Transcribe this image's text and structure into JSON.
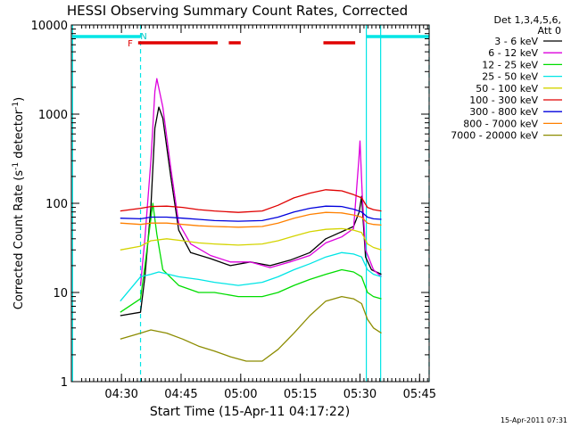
{
  "chart_data": {
    "type": "line",
    "title": "HESSI Observing Summary Count Rates, Corrected",
    "xlabel": "Start Time (15-Apr-11 04:17:22)",
    "ylabel": "Corrected Count Rate (s",
    "ylabel_sup": "-1",
    "ylabel_mid": " detector",
    "ylabel_sup2": "-1",
    "ylabel_end": ")",
    "y_scale": "log",
    "ylim": [
      1,
      10000
    ],
    "xlim_minutes": [
      0,
      90
    ],
    "x_start": "04:17:22",
    "x_ticks": [
      {
        "label": "04:30",
        "min": 12.6
      },
      {
        "label": "04:45",
        "min": 27.6
      },
      {
        "label": "05:00",
        "min": 42.6
      },
      {
        "label": "05:15",
        "min": 57.6
      },
      {
        "label": "05:30",
        "min": 72.6
      },
      {
        "label": "05:45",
        "min": 87.6
      }
    ],
    "y_ticks": [
      {
        "label": "1",
        "value": 1
      },
      {
        "label": "10",
        "value": 10
      },
      {
        "label": "100",
        "value": 100
      },
      {
        "label": "1000",
        "value": 1000
      },
      {
        "label": "10000",
        "value": 10000
      }
    ],
    "legend_header": [
      "Det 1,3,4,5,6,",
      "Att 0"
    ],
    "legend_placement": "right",
    "footer_date": "15-Apr-2011 07:31",
    "flag_labels": {
      "F": "F",
      "N": "N"
    },
    "flags": {
      "night_vertical_minutes": [
        0.3,
        17.4,
        74.2,
        77.8,
        90
      ],
      "night_bar_minutes": [
        [
          0.3,
          17.4
        ],
        [
          74.2,
          90
        ]
      ],
      "flare_bar_minutes": [
        [
          16.8,
          36.8
        ],
        [
          39.6,
          42.6
        ],
        [
          63.4,
          71.4
        ]
      ],
      "night_color": "#00e5e5",
      "flare_color": "#e00000"
    },
    "series": [
      {
        "name": "3 - 6 keV",
        "color": "#000000",
        "points": [
          [
            12.3,
            5.5
          ],
          [
            17.4,
            6
          ],
          [
            18.5,
            15
          ],
          [
            20,
            90
          ],
          [
            21,
            700
          ],
          [
            22,
            1200
          ],
          [
            23,
            900
          ],
          [
            25,
            200
          ],
          [
            27,
            50
          ],
          [
            30,
            28
          ],
          [
            35,
            24
          ],
          [
            40,
            20
          ],
          [
            45,
            22
          ],
          [
            50,
            20
          ],
          [
            55,
            23
          ],
          [
            60,
            28
          ],
          [
            64,
            40
          ],
          [
            68,
            48
          ],
          [
            71,
            55
          ],
          [
            72.4,
            80
          ],
          [
            73,
            120
          ],
          [
            74,
            25
          ],
          [
            75.5,
            18
          ],
          [
            78,
            16
          ]
        ]
      },
      {
        "name": "6 - 12 keV",
        "color": "#dd00dd",
        "points": [
          [
            17.4,
            12
          ],
          [
            18.5,
            40
          ],
          [
            20,
            300
          ],
          [
            21,
            1800
          ],
          [
            21.5,
            2500
          ],
          [
            23,
            1200
          ],
          [
            25,
            250
          ],
          [
            27,
            60
          ],
          [
            30,
            35
          ],
          [
            35,
            26
          ],
          [
            40,
            22
          ],
          [
            45,
            22
          ],
          [
            50,
            19
          ],
          [
            55,
            22
          ],
          [
            60,
            26
          ],
          [
            64,
            36
          ],
          [
            68,
            42
          ],
          [
            71,
            52
          ],
          [
            72.3,
            300
          ],
          [
            72.6,
            500
          ],
          [
            73.2,
            120
          ],
          [
            74,
            30
          ],
          [
            76,
            18
          ],
          [
            78,
            15
          ]
        ]
      },
      {
        "name": "12 - 25 keV",
        "color": "#00dd00",
        "points": [
          [
            12.3,
            6
          ],
          [
            17.4,
            8.5
          ],
          [
            18.5,
            20
          ],
          [
            20.5,
            100
          ],
          [
            21.5,
            45
          ],
          [
            23,
            18
          ],
          [
            27,
            12
          ],
          [
            32,
            10
          ],
          [
            36,
            10
          ],
          [
            42,
            9
          ],
          [
            48,
            9
          ],
          [
            52,
            10
          ],
          [
            56,
            12
          ],
          [
            60,
            14
          ],
          [
            64,
            16
          ],
          [
            68,
            18
          ],
          [
            71,
            17
          ],
          [
            73,
            15
          ],
          [
            74.5,
            10
          ],
          [
            76,
            9
          ],
          [
            78,
            8.5
          ]
        ]
      },
      {
        "name": "25 - 50 keV",
        "color": "#00e5e5",
        "points": [
          [
            12.3,
            8
          ],
          [
            17.4,
            15
          ],
          [
            20,
            16
          ],
          [
            22,
            17
          ],
          [
            27,
            15
          ],
          [
            32,
            14
          ],
          [
            36,
            13
          ],
          [
            42,
            12
          ],
          [
            48,
            13
          ],
          [
            52,
            15
          ],
          [
            56,
            18
          ],
          [
            60,
            21
          ],
          [
            64,
            25
          ],
          [
            68,
            28
          ],
          [
            71,
            27
          ],
          [
            73,
            25
          ],
          [
            74.5,
            18
          ],
          [
            76,
            16
          ],
          [
            78,
            15
          ]
        ]
      },
      {
        "name": "50 - 100 keV",
        "color": "#d4d400",
        "points": [
          [
            12.3,
            30
          ],
          [
            17.4,
            33
          ],
          [
            20,
            38
          ],
          [
            24,
            40
          ],
          [
            28,
            38
          ],
          [
            32,
            36
          ],
          [
            36,
            35
          ],
          [
            42,
            34
          ],
          [
            48,
            35
          ],
          [
            52,
            38
          ],
          [
            56,
            43
          ],
          [
            60,
            48
          ],
          [
            64,
            51
          ],
          [
            68,
            52
          ],
          [
            71,
            50
          ],
          [
            73,
            47
          ],
          [
            74.5,
            35
          ],
          [
            76,
            32
          ],
          [
            78,
            30
          ]
        ]
      },
      {
        "name": "100 - 300 keV",
        "color": "#e00000",
        "points": [
          [
            12.3,
            82
          ],
          [
            17.4,
            88
          ],
          [
            20,
            92
          ],
          [
            24,
            93
          ],
          [
            28,
            90
          ],
          [
            32,
            85
          ],
          [
            36,
            82
          ],
          [
            42,
            79
          ],
          [
            48,
            82
          ],
          [
            52,
            95
          ],
          [
            56,
            115
          ],
          [
            60,
            130
          ],
          [
            64,
            142
          ],
          [
            68,
            138
          ],
          [
            71,
            125
          ],
          [
            73,
            115
          ],
          [
            74.5,
            90
          ],
          [
            76,
            85
          ],
          [
            78,
            82
          ]
        ]
      },
      {
        "name": "300 - 800 keV",
        "color": "#0000dd",
        "points": [
          [
            12.3,
            68
          ],
          [
            17.4,
            67
          ],
          [
            20,
            70
          ],
          [
            24,
            70
          ],
          [
            28,
            68
          ],
          [
            32,
            66
          ],
          [
            36,
            64
          ],
          [
            42,
            63
          ],
          [
            48,
            64
          ],
          [
            52,
            70
          ],
          [
            56,
            80
          ],
          [
            60,
            88
          ],
          [
            64,
            93
          ],
          [
            68,
            92
          ],
          [
            71,
            86
          ],
          [
            73,
            80
          ],
          [
            74.5,
            70
          ],
          [
            76,
            67
          ],
          [
            78,
            66
          ]
        ]
      },
      {
        "name": "800 - 7000 keV",
        "color": "#ff8000",
        "points": [
          [
            12.3,
            60
          ],
          [
            17.4,
            58
          ],
          [
            20,
            60
          ],
          [
            24,
            60
          ],
          [
            28,
            58
          ],
          [
            32,
            56
          ],
          [
            36,
            55
          ],
          [
            42,
            54
          ],
          [
            48,
            55
          ],
          [
            52,
            60
          ],
          [
            56,
            68
          ],
          [
            60,
            75
          ],
          [
            64,
            79
          ],
          [
            68,
            78
          ],
          [
            71,
            74
          ],
          [
            73,
            70
          ],
          [
            74.5,
            60
          ],
          [
            76,
            58
          ],
          [
            78,
            57
          ]
        ]
      },
      {
        "name": "7000 - 20000 keV",
        "color": "#8c8c00",
        "points": [
          [
            12.3,
            3
          ],
          [
            17.4,
            3.5
          ],
          [
            20,
            3.8
          ],
          [
            24,
            3.5
          ],
          [
            28,
            3
          ],
          [
            32,
            2.5
          ],
          [
            36,
            2.2
          ],
          [
            40,
            1.9
          ],
          [
            44,
            1.7
          ],
          [
            48,
            1.7
          ],
          [
            52,
            2.3
          ],
          [
            56,
            3.5
          ],
          [
            60,
            5.5
          ],
          [
            64,
            8
          ],
          [
            68,
            9
          ],
          [
            71,
            8.5
          ],
          [
            73,
            7.5
          ],
          [
            74.5,
            5
          ],
          [
            76,
            4
          ],
          [
            78,
            3.5
          ]
        ]
      }
    ]
  }
}
